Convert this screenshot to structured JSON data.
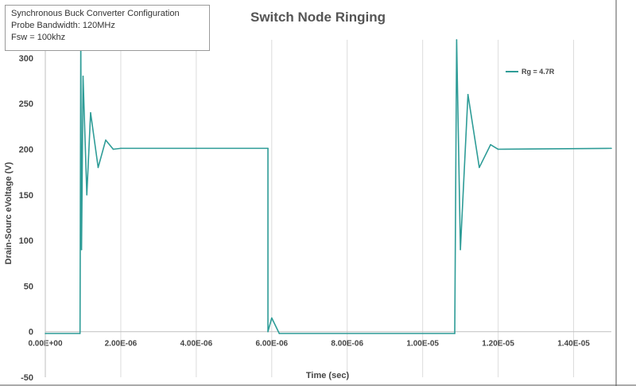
{
  "info_box": {
    "lines": [
      "Synchronous Buck Converter Configuration",
      "Probe Bandwidth: 120MHz",
      "Fsw = 100khz"
    ]
  },
  "chart_data": {
    "type": "line",
    "title": "Switch Node Ringing",
    "xlabel": "Time (sec)",
    "ylabel": "Drain-Sourc eVoltage (V)",
    "xlim": [
      0,
      1.5e-05
    ],
    "ylim": [
      -50,
      320
    ],
    "x_ticks": [
      0,
      2e-06,
      4e-06,
      6e-06,
      8e-06,
      1e-05,
      1.2e-05,
      1.4e-05
    ],
    "x_tick_labels": [
      "0.00E+00",
      "2.00E-06",
      "4.00E-06",
      "6.00E-06",
      "8.00E-06",
      "1.00E-05",
      "1.20E-05",
      "1.40E-05"
    ],
    "y_ticks": [
      -50,
      0,
      50,
      100,
      150,
      200,
      250,
      300
    ],
    "y_tick_labels": [
      "-50",
      "0",
      "50",
      "100",
      "150",
      "200",
      "250",
      "300"
    ],
    "grid": {
      "vertical": true,
      "horizontal": false
    },
    "legend_position": "top-right",
    "series": [
      {
        "name": "Rg = 4.7R",
        "color": "#2e9c97",
        "points": [
          [
            0.0,
            -2
          ],
          [
            9.2e-07,
            -2
          ],
          [
            9.4e-07,
            320
          ],
          [
            9.6e-07,
            90
          ],
          [
            1e-06,
            280
          ],
          [
            1.1e-06,
            150
          ],
          [
            1.2e-06,
            240
          ],
          [
            1.4e-06,
            180
          ],
          [
            1.6e-06,
            210
          ],
          [
            1.8e-06,
            200
          ],
          [
            2e-06,
            201
          ],
          [
            4e-06,
            201
          ],
          [
            5.9e-06,
            201
          ],
          [
            5.9e-06,
            0
          ],
          [
            6e-06,
            15
          ],
          [
            6.2e-06,
            -2
          ],
          [
            1.085e-05,
            -2
          ],
          [
            1.09e-05,
            320
          ],
          [
            1.1e-05,
            90
          ],
          [
            1.12e-05,
            260
          ],
          [
            1.15e-05,
            180
          ],
          [
            1.18e-05,
            205
          ],
          [
            1.2e-05,
            200
          ],
          [
            1.5e-05,
            201
          ]
        ]
      }
    ]
  }
}
